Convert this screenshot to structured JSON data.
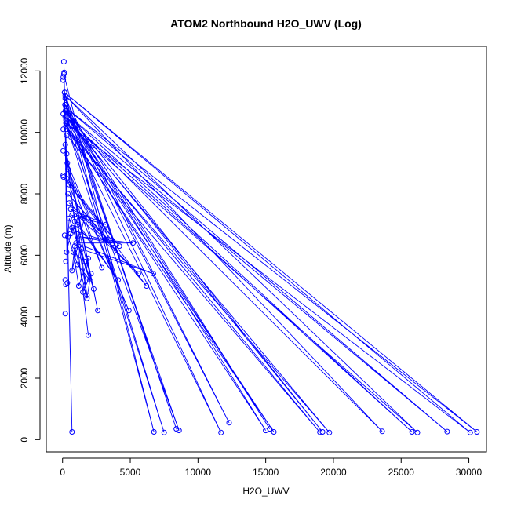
{
  "chart_data": {
    "type": "scatter",
    "title": "ATOM2 Northbound H2O_UWV (Log)",
    "xlabel": "H2O_UWV",
    "ylabel": "Altitude (m)",
    "xlim": [
      -1200,
      31300
    ],
    "ylim": [
      -400,
      12800
    ],
    "xticks": [
      0,
      5000,
      10000,
      15000,
      20000,
      25000,
      30000
    ],
    "yticks": [
      0,
      2000,
      4000,
      6000,
      8000,
      10000,
      12000
    ],
    "grid": false,
    "legend": "none",
    "series_color": "#0000ff",
    "series": [
      {
        "points": [
          [
            100,
            12300
          ],
          [
            700,
            250
          ],
          [
            100,
            11900
          ],
          [
            6750,
            250
          ],
          [
            150,
            11300
          ],
          [
            8400,
            350
          ],
          [
            200,
            11100
          ],
          [
            12300,
            550
          ],
          [
            180,
            10900
          ],
          [
            15300,
            350
          ],
          [
            250,
            10700
          ],
          [
            19200,
            250
          ],
          [
            300,
            10500
          ],
          [
            23600,
            270
          ],
          [
            200,
            11200
          ],
          [
            26200,
            230
          ],
          [
            300,
            10300
          ],
          [
            30100,
            230
          ],
          [
            150,
            11300
          ],
          [
            30600,
            250
          ],
          [
            250,
            10800
          ],
          [
            28400,
            260
          ],
          [
            300,
            10600
          ],
          [
            25800,
            250
          ],
          [
            200,
            10500
          ],
          [
            19700,
            230
          ],
          [
            300,
            10100
          ],
          [
            15600,
            250
          ],
          [
            250,
            10400
          ],
          [
            11700,
            230
          ],
          [
            200,
            10900
          ],
          [
            8600,
            300
          ],
          [
            250,
            10300
          ],
          [
            7500,
            230
          ],
          [
            200,
            10700
          ],
          [
            15000,
            300
          ],
          [
            250,
            10200
          ],
          [
            19000,
            240
          ],
          [
            300,
            9900
          ],
          [
            350,
            5100
          ],
          [
            200,
            9600
          ],
          [
            1900,
            3400
          ],
          [
            300,
            9300
          ],
          [
            2600,
            4200
          ],
          [
            350,
            9000
          ],
          [
            4900,
            4200
          ],
          [
            400,
            8800
          ],
          [
            2900,
            5600
          ],
          [
            300,
            8500
          ],
          [
            4200,
            6300
          ],
          [
            500,
            8300
          ],
          [
            6200,
            5000
          ],
          [
            400,
            8000
          ],
          [
            3400,
            6500
          ],
          [
            500,
            7700
          ],
          [
            5600,
            5400
          ],
          [
            600,
            7500
          ],
          [
            3200,
            7000
          ],
          [
            700,
            7300
          ],
          [
            4100,
            5200
          ],
          [
            900,
            7100
          ],
          [
            1800,
            4700
          ],
          [
            1100,
            7000
          ],
          [
            2300,
            4900
          ],
          [
            800,
            6800
          ],
          [
            3700,
            6400
          ],
          [
            1300,
            6600
          ],
          [
            5200,
            6400
          ],
          [
            1000,
            6400
          ],
          [
            6700,
            5400
          ],
          [
            1400,
            6200
          ],
          [
            1600,
            5800
          ],
          [
            800,
            6100
          ],
          [
            1200,
            5000
          ],
          [
            1900,
            5900
          ],
          [
            1500,
            4800
          ],
          [
            2100,
            5400
          ],
          [
            1800,
            4600
          ],
          [
            900,
            6300
          ],
          [
            700,
            5500
          ],
          [
            1600,
            7200
          ],
          [
            1200,
            7300
          ],
          [
            600,
            6700
          ],
          [
            400,
            6600
          ],
          [
            1100,
            5700
          ],
          [
            2000,
            5200
          ],
          [
            500,
            7200
          ],
          [
            300,
            6100
          ],
          [
            700,
            6900
          ]
        ]
      }
    ],
    "isolated_points": [
      [
        50,
        11700
      ],
      [
        50,
        10600
      ],
      [
        50,
        10100
      ],
      [
        50,
        9400
      ],
      [
        50,
        8600
      ],
      [
        70,
        8550
      ],
      [
        150,
        6650
      ],
      [
        200,
        4100
      ],
      [
        250,
        5800
      ],
      [
        200,
        5200
      ],
      [
        250,
        5050
      ],
      [
        120,
        11950
      ],
      [
        60,
        11800
      ]
    ]
  }
}
